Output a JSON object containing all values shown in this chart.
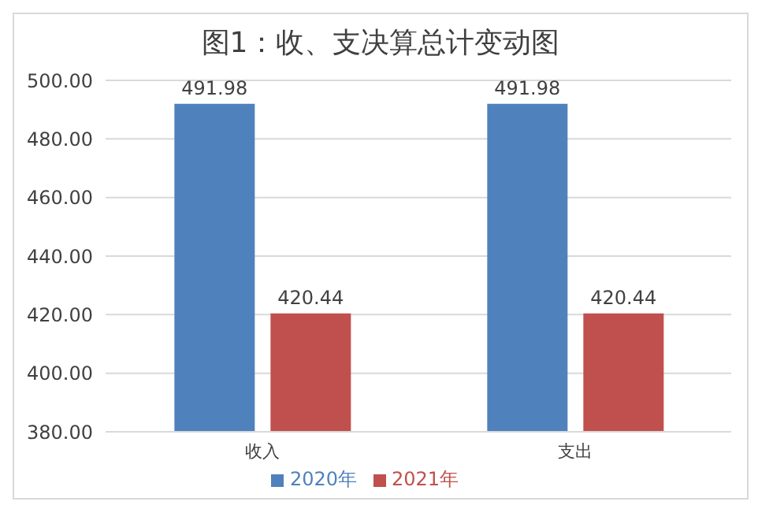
{
  "chart_data": {
    "type": "bar",
    "title": "图1：收、支决算总计变动图",
    "categories": [
      "收入",
      "支出"
    ],
    "series": [
      {
        "name": "2020年",
        "color": "#4f81bd",
        "values": [
          491.98,
          491.98
        ]
      },
      {
        "name": "2021年",
        "color": "#c0504d",
        "values": [
          420.44,
          420.44
        ]
      }
    ],
    "ylim": [
      380,
      500
    ],
    "yticks": [
      {
        "value": 380,
        "label": "380.00"
      },
      {
        "value": 400,
        "label": "400.00"
      },
      {
        "value": 420,
        "label": "420.00"
      },
      {
        "value": 440,
        "label": "440.00"
      },
      {
        "value": 460,
        "label": "460.00"
      },
      {
        "value": 480,
        "label": "480.00"
      },
      {
        "value": 500,
        "label": "500.00"
      }
    ],
    "grid": "y",
    "legend": "bottom",
    "data_labels": true
  }
}
